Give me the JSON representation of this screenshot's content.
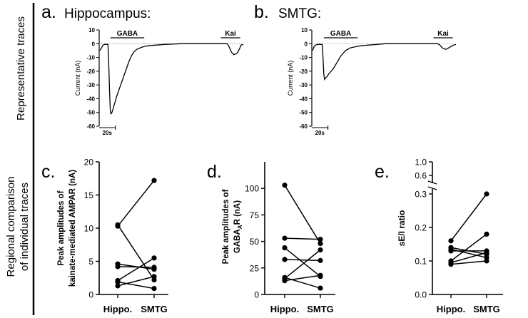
{
  "side_labels": {
    "top": "Representative traces",
    "bottom_line1": "Regional comparison",
    "bottom_line2": "of individual traces"
  },
  "panels": {
    "a": {
      "letter": "a.",
      "title": "Hippocampus:"
    },
    "b": {
      "letter": "b.",
      "title": "SMTG:"
    },
    "c": {
      "letter": "c."
    },
    "d": {
      "letter": "d."
    },
    "e": {
      "letter": "e."
    }
  },
  "colors": {
    "line": "#000000",
    "baseline_dotted": "#777777",
    "background": "#ffffff"
  },
  "chart_data": [
    {
      "id": "a",
      "type": "line",
      "title": "Hippocampus:",
      "ylabel": "Current (nA)",
      "ylim": [
        -60,
        10
      ],
      "yticks": [
        "10",
        "0",
        "-10",
        "-20",
        "-30",
        "-40",
        "-50",
        "-60"
      ],
      "scale_bar": "20s",
      "annotations": [
        "GABA",
        "Kai"
      ],
      "series": [
        {
          "x": [
            0,
            2,
            4,
            6,
            8,
            10,
            11,
            12,
            13,
            14,
            15,
            17,
            19,
            21,
            24,
            27,
            30,
            33,
            36,
            39,
            42,
            46,
            50,
            55,
            60,
            70,
            80,
            90,
            100,
            110,
            120,
            130,
            140,
            150,
            155,
            158,
            160,
            163,
            166,
            170,
            173,
            175,
            178
          ],
          "y": [
            -5,
            -3,
            -1,
            -0.5,
            -0.5,
            -0.5,
            -15,
            -35,
            -50,
            -51,
            -50,
            -46,
            -42,
            -38,
            -33,
            -28,
            -23,
            -18,
            -13,
            -9,
            -6,
            -4,
            -3,
            -2,
            -1.5,
            -1,
            -0.5,
            -0.3,
            0,
            0,
            0,
            0,
            0,
            0,
            0,
            0,
            -2,
            -6,
            -8,
            -7,
            -4,
            -1,
            -0.5
          ]
        }
      ]
    },
    {
      "id": "b",
      "type": "line",
      "title": "SMTG:",
      "ylabel": "Current (nA)",
      "ylim": [
        -60,
        10
      ],
      "yticks": [
        "10",
        "0",
        "-10",
        "-20",
        "-30",
        "-40",
        "-50",
        "-60"
      ],
      "scale_bar": "20s",
      "annotations": [
        "GABA",
        "Kai"
      ],
      "series": [
        {
          "x": [
            0,
            2,
            4,
            6,
            8,
            10,
            12,
            13,
            14,
            15,
            16,
            18,
            20,
            23,
            26,
            29,
            32,
            35,
            38,
            41,
            44,
            47,
            51,
            55,
            60,
            70,
            80,
            90,
            100,
            110,
            120,
            130,
            140,
            150,
            155,
            158,
            161,
            164,
            166,
            169,
            172,
            175,
            178
          ],
          "y": [
            -5,
            -2,
            -1,
            -0.5,
            -0.5,
            -0.5,
            -0.5,
            -10,
            -22,
            -26,
            -25,
            -24,
            -22,
            -20,
            -18,
            -15,
            -12,
            -9,
            -7,
            -5,
            -4,
            -3,
            -2.5,
            -2,
            -1.5,
            -1,
            -0.5,
            0,
            0,
            0,
            0,
            0,
            0,
            0,
            0,
            -1,
            -3,
            -4,
            -4,
            -3,
            -2,
            -1,
            -0.5
          ]
        }
      ]
    },
    {
      "id": "c",
      "type": "scatter",
      "paired": true,
      "categories": [
        "Hippo.",
        "SMTG"
      ],
      "ylabel_lines": [
        "Peak amplitudes of",
        "kainate-mediated AMPAR (nA)"
      ],
      "ylim": [
        0,
        20
      ],
      "yticks": [
        "0",
        "5",
        "10",
        "15",
        "20"
      ],
      "pairs": [
        [
          10.5,
          2.2
        ],
        [
          10.3,
          17.2
        ],
        [
          4.6,
          3.8
        ],
        [
          4.2,
          4.1
        ],
        [
          2.1,
          5.5
        ],
        [
          1.9,
          0.9
        ],
        [
          1.3,
          2.7
        ]
      ]
    },
    {
      "id": "d",
      "type": "scatter",
      "paired": true,
      "categories": [
        "Hippo.",
        "SMTG"
      ],
      "ylabel_lines": [
        "Peak amplitudes of",
        "GABA",
        "A",
        "R (nA)"
      ],
      "ylim": [
        0,
        125
      ],
      "yticks": [
        "0",
        "25",
        "50",
        "75",
        "100"
      ],
      "pairs": [
        [
          103,
          48
        ],
        [
          53,
          52
        ],
        [
          44,
          17
        ],
        [
          33,
          32
        ],
        [
          16,
          6
        ],
        [
          15,
          42
        ],
        [
          13,
          18
        ]
      ]
    },
    {
      "id": "e",
      "type": "scatter",
      "paired": true,
      "broken_axis": true,
      "categories": [
        "Hippo.",
        "SMTG"
      ],
      "ylabel": "sE/I ratio",
      "yticks_lower": [
        "0.0",
        "0.1",
        "0.2",
        "0.3"
      ],
      "yticks_upper": [
        "0.6",
        "1.0"
      ],
      "pairs": [
        [
          0.16,
          0.3
        ],
        [
          0.14,
          0.12
        ],
        [
          0.135,
          0.11
        ],
        [
          0.13,
          0.13
        ],
        [
          0.1,
          0.18
        ],
        [
          0.095,
          0.125
        ],
        [
          0.09,
          0.1
        ]
      ]
    }
  ]
}
